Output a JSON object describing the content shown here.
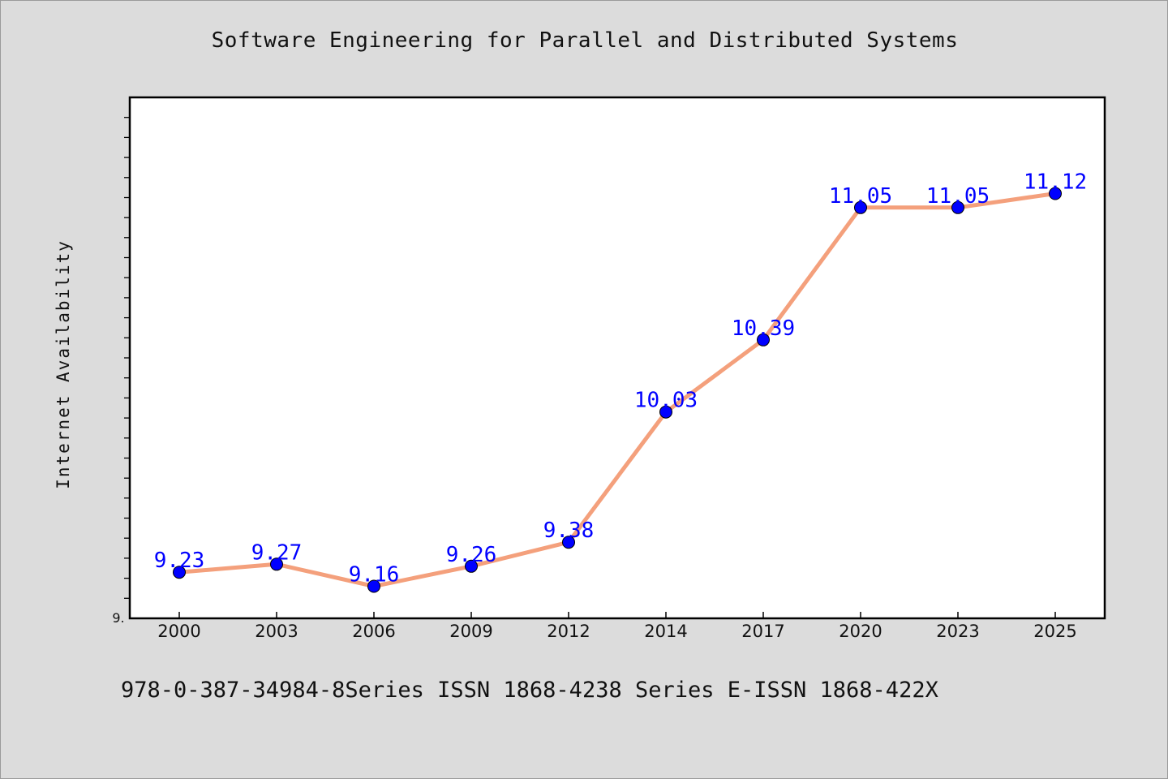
{
  "chart_data": {
    "type": "line",
    "title": "Software Engineering for Parallel and Distributed Systems",
    "xlabel": "",
    "ylabel": "Internet Availability",
    "categories": [
      "2000",
      "2003",
      "2006",
      "2009",
      "2012",
      "2014",
      "2017",
      "2020",
      "2023",
      "2025"
    ],
    "series": [
      {
        "values": [
          9.23,
          9.27,
          9.16,
          9.26,
          9.38,
          10.03,
          10.39,
          11.05,
          11.05,
          11.12
        ]
      }
    ],
    "data_labels": [
      "9.23",
      "9.27",
      "9.16",
      "9.26",
      "9.38",
      "10.03",
      "10.39",
      "11.05",
      "11.05",
      "11.12"
    ],
    "ylim": [
      9.0,
      11.6
    ],
    "y_tick_label": "9.",
    "grid": false,
    "legend": "none",
    "colors": {
      "line": "#f4a07c",
      "marker": "#0000ff",
      "label": "#0000ff",
      "background": "#dcdcdc",
      "plot_area": "#ffffff"
    },
    "footnote": "978-0-387-34984-8Series ISSN 1868-4238 Series E-ISSN 1868-422X"
  }
}
